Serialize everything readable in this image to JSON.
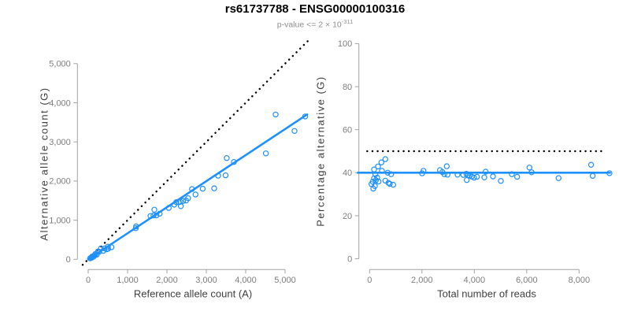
{
  "title": "rs61737788 - ENSG00000100316",
  "subtitle": {
    "text": "p-value <= 2 × 10",
    "exponent": "-311"
  },
  "colors": {
    "accent_blue": "#1E90FF",
    "reference_line_black": "#000000",
    "axis_gray": "#a3a3a3",
    "tick_label_gray": "#7e7e7e",
    "axis_title_gray": "#3f3f3f",
    "subtitle_gray": "#8f8f8f",
    "background": "#ffffff"
  },
  "chart_data": [
    {
      "id": "allele-counts",
      "type": "scatter",
      "xlabel": "Reference allele count (A)",
      "ylabel": "Alternative allele count (G)",
      "xlim": [
        0,
        5560
      ],
      "ylim": [
        0,
        5530
      ],
      "grid": false,
      "legend": "none",
      "xticks": [
        0,
        1000,
        2000,
        3000,
        4000,
        5000
      ],
      "xtick_labels": [
        "0",
        "1,000",
        "2,000",
        "3,000",
        "4,000",
        "5,000"
      ],
      "yticks": [
        0,
        1000,
        2000,
        3000,
        4000,
        5000
      ],
      "ytick_labels": [
        "0",
        "1,000",
        "2,000",
        "3,000",
        "4,000",
        "5,000"
      ],
      "points": {
        "x": [
          47,
          77,
          95,
          100,
          107,
          133,
          135,
          153,
          182,
          184,
          220,
          249,
          279,
          323,
          383,
          415,
          467,
          503,
          500,
          592,
          1215,
          1210,
          1581,
          1658,
          1680,
          1734,
          1813,
          2046,
          2183,
          2238,
          2352,
          2300,
          2339,
          2410,
          2486,
          2538,
          2726,
          2637,
          2908,
          3199,
          3299,
          3489,
          3517,
          3699,
          4511,
          4760,
          5240,
          5510
        ],
        "y": [
          25,
          43,
          46,
          71,
          64,
          68,
          87,
          88,
          110,
          138,
          123,
          202,
          193,
          278,
          218,
          277,
          255,
          269,
          324,
          310,
          841,
          796,
          1107,
          1120,
          1267,
          1123,
          1164,
          1313,
          1396,
          1461,
          1358,
          1459,
          1471,
          1490,
          1504,
          1562,
          1656,
          1795,
          1805,
          1815,
          2136,
          2147,
          2588,
          2487,
          2707,
          3700,
          3280,
          3650
        ]
      },
      "identity_line": {
        "style": "dotted",
        "slope": 1,
        "intercept": 0
      },
      "fit_line": {
        "style": "solid",
        "slope": 0.665,
        "x1": 0,
        "y1": 0,
        "x2": 5560,
        "y2": 3700
      }
    },
    {
      "id": "percentage-alternative",
      "type": "scatter",
      "xlabel": "Total number of reads",
      "ylabel": "Percentage alternative (G)",
      "xlim": [
        0,
        9200
      ],
      "ylim": [
        0,
        100
      ],
      "grid": false,
      "legend": "none",
      "xticks": [
        0,
        2000,
        4000,
        6000,
        8000
      ],
      "xtick_labels": [
        "0",
        "2,000",
        "4,000",
        "6,000",
        "8,000"
      ],
      "yticks": [
        0,
        20,
        40,
        60,
        80,
        100
      ],
      "ytick_labels": [
        "0",
        "20",
        "40",
        "60",
        "80",
        "100"
      ],
      "points": {
        "x": [
          72,
          120,
          141,
          171,
          171,
          201,
          222,
          241,
          292,
          322,
          343,
          451,
          472,
          601,
          601,
          692,
          722,
          772,
          824,
          902,
          2056,
          2006,
          2688,
          2778,
          2947,
          2857,
          2977,
          3359,
          3579,
          3699,
          3710,
          3759,
          3810,
          3900,
          3990,
          4100,
          4382,
          4432,
          4713,
          5014,
          5435,
          5636,
          6105,
          6186,
          7218,
          8460,
          8520,
          9160
        ],
        "y": [
          34.7,
          35.8,
          32.6,
          41.5,
          37.4,
          33.8,
          39.2,
          36.5,
          37.7,
          42.9,
          35.9,
          44.8,
          40.9,
          46.3,
          36.3,
          40.0,
          35.3,
          34.8,
          39.3,
          34.4,
          40.9,
          39.7,
          41.2,
          40.3,
          43.0,
          39.3,
          39.1,
          39.1,
          39.0,
          39.5,
          36.6,
          38.8,
          38.6,
          38.2,
          37.7,
          38.1,
          37.8,
          40.5,
          38.3,
          36.2,
          39.3,
          38.1,
          42.4,
          40.2,
          37.5,
          43.7,
          38.5,
          39.8
        ]
      },
      "reference_line": {
        "style": "dotted",
        "y": 50
      },
      "fit_line": {
        "style": "solid",
        "y": 40
      }
    }
  ]
}
